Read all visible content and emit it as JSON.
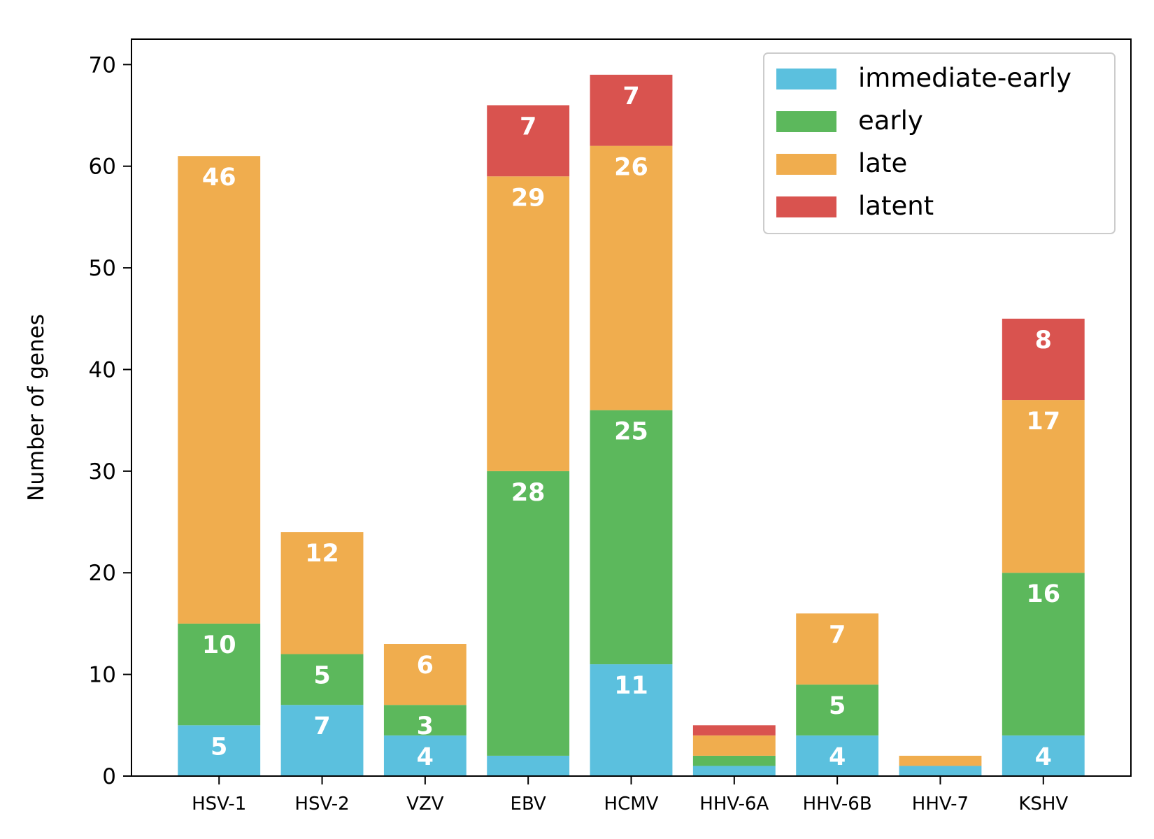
{
  "chart_data": {
    "type": "bar",
    "stacked": true,
    "categories": [
      "HSV-1",
      "HSV-2",
      "VZV",
      "EBV",
      "HCMV",
      "HHV-6A",
      "HHV-6B",
      "HHV-7",
      "KSHV"
    ],
    "series": [
      {
        "name": "immediate-early",
        "color": "#5bc0de",
        "values": [
          5,
          7,
          4,
          2,
          11,
          1,
          4,
          1,
          4
        ],
        "labels": [
          "5",
          "7",
          "4",
          "",
          "11",
          "",
          "4",
          "",
          "4"
        ]
      },
      {
        "name": "early",
        "color": "#5cb85c",
        "values": [
          10,
          5,
          3,
          28,
          25,
          1,
          5,
          0,
          16
        ],
        "labels": [
          "10",
          "5",
          "3",
          "28",
          "25",
          "",
          "5",
          "",
          "16"
        ]
      },
      {
        "name": "late",
        "color": "#f0ad4e",
        "values": [
          46,
          12,
          6,
          29,
          26,
          2,
          7,
          1,
          17
        ],
        "labels": [
          "46",
          "12",
          "6",
          "29",
          "26",
          "",
          "7",
          "",
          "17"
        ]
      },
      {
        "name": "latent",
        "color": "#d9534f",
        "values": [
          0,
          0,
          0,
          7,
          7,
          1,
          0,
          0,
          8
        ],
        "labels": [
          "",
          "",
          "",
          "7",
          "7",
          "",
          "",
          "",
          "8"
        ]
      }
    ],
    "xlabel": "",
    "ylabel": "Number of genes",
    "ylim": [
      0,
      72.5
    ],
    "yticks": [
      0,
      10,
      20,
      30,
      40,
      50,
      60,
      70
    ],
    "grid": false,
    "legend_position": "top-right"
  }
}
